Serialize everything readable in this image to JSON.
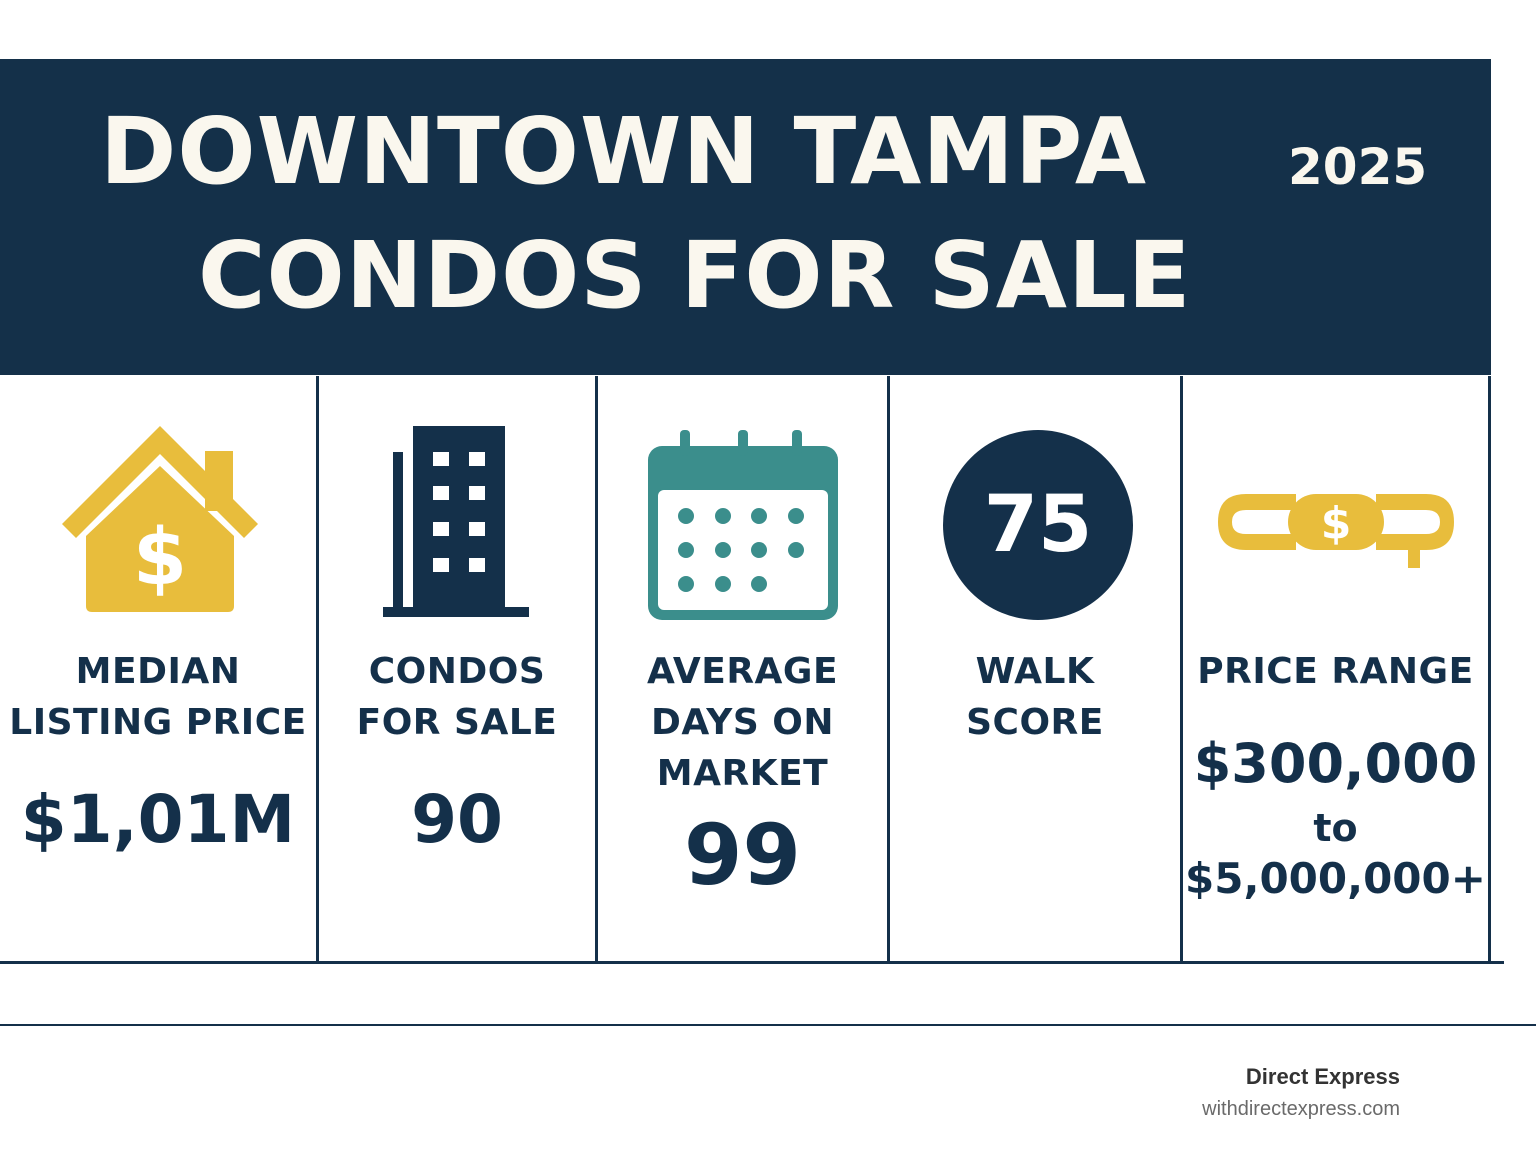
{
  "header": {
    "title_line1": "DOWNTOWN TAMPA",
    "title_line2": "CONDOS FOR SALE",
    "year": "2025"
  },
  "colors": {
    "navy": "#143049",
    "gold": "#e8bd3c",
    "teal": "#3b8e8c",
    "cream": "#faf7ee"
  },
  "stats": [
    {
      "icon": "house-dollar-icon",
      "label_line1": "MEDIAN",
      "label_line2": "LISTING PRICE",
      "value": "$1,01M"
    },
    {
      "icon": "building-icon",
      "label_line1": "CONDOS",
      "label_line2": "FOR SALE",
      "value": "90"
    },
    {
      "icon": "calendar-icon",
      "label_line1": "AVERAGE",
      "label_line2": "DAYS ON",
      "label_line3": "MARKET",
      "value": "99"
    },
    {
      "icon": "walk-score-badge",
      "badge": "75",
      "label_line1": "WALK",
      "label_line2": "SCORE"
    },
    {
      "icon": "price-range-icon",
      "label_line1": "PRICE RANGE",
      "value_line1": "$300,000",
      "value_line2": "to",
      "value_line3": "$5,000,000+"
    }
  ],
  "footer": {
    "brand": "Direct Express",
    "website": "withdirectexpress.com"
  }
}
